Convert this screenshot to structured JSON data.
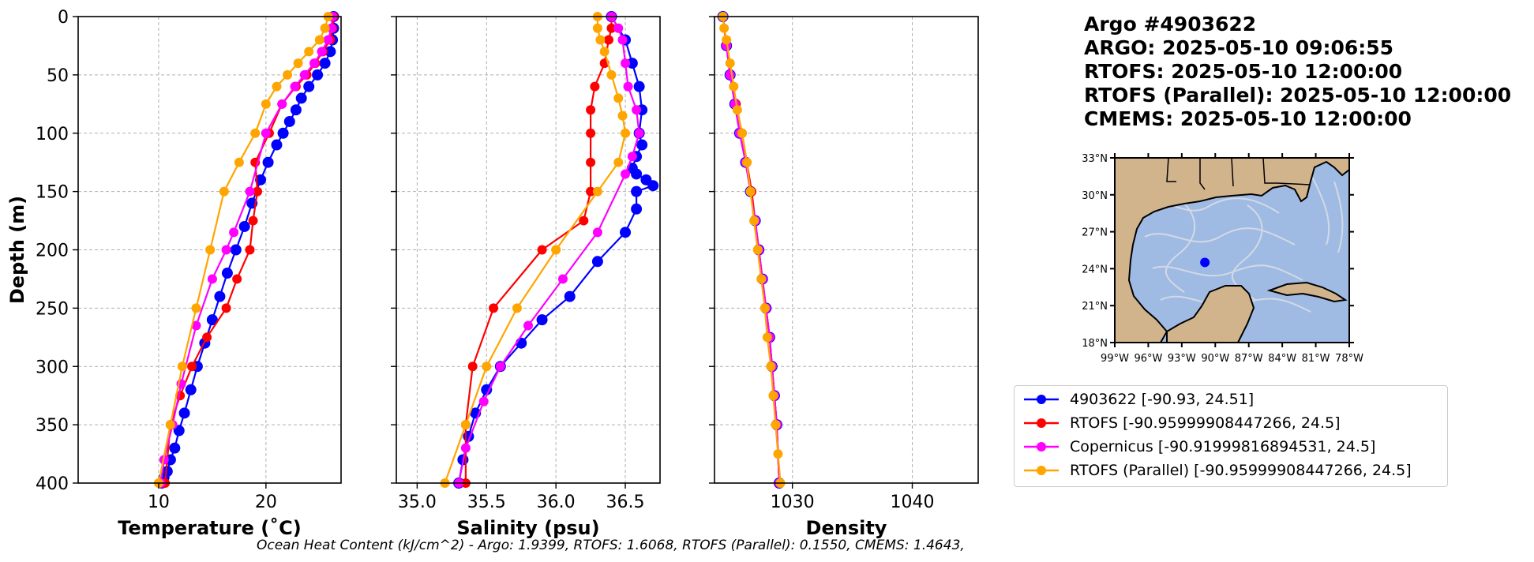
{
  "header": {
    "lines": [
      "Argo #4903622",
      "ARGO:  2025-05-10 09:06:55",
      "RTOFS: 2025-05-10 12:00:00",
      "RTOFS (Parallel): 2025-05-10 12:00:00",
      "CMEMS: 2025-05-10 12:00:00"
    ]
  },
  "footnote": "Ocean Heat Content (kJ/cm^2) - Argo: 1.9399,  RTOFS: 1.6068,  RTOFS (Parallel): 0.1550,  CMEMS: 1.4643,",
  "colors": {
    "argo": "#0000ff",
    "rtofs": "#ff0000",
    "copernicus": "#ff00ff",
    "rtofs_parallel": "#ffa500",
    "grid": "#b0b0b0",
    "land": "#d2b48c",
    "ocean": "#9fbbe4",
    "streamlines": "#d9dde4"
  },
  "legend": {
    "items": [
      {
        "label": "4903622 [-90.93, 24.51]",
        "series": "argo"
      },
      {
        "label": "RTOFS [-90.95999908447266, 24.5]",
        "series": "rtofs"
      },
      {
        "label": "Copernicus [-90.91999816894531, 24.5]",
        "series": "copernicus"
      },
      {
        "label": "RTOFS (Parallel) [-90.95999908447266, 24.5]",
        "series": "rtofs_parallel"
      }
    ]
  },
  "map": {
    "lat_labels": [
      "33°N",
      "30°N",
      "27°N",
      "24°N",
      "21°N",
      "18°N"
    ],
    "lon_labels": [
      "99°W",
      "96°W",
      "93°W",
      "90°W",
      "87°W",
      "84°W",
      "81°W",
      "78°W"
    ],
    "lon_range": [
      -99,
      -78
    ],
    "lat_range": [
      18,
      33
    ],
    "float_position": {
      "lon": -90.93,
      "lat": 24.51
    }
  },
  "chart_data": [
    {
      "type": "line",
      "xlabel": "Temperature (˚C)",
      "ylabel": "Depth (m)",
      "xlim": [
        2.5,
        27
      ],
      "ylim": [
        400,
        0
      ],
      "xticks": [
        10,
        20
      ],
      "yticks": [
        0,
        50,
        100,
        150,
        200,
        250,
        300,
        350,
        400
      ],
      "grid": true,
      "series": [
        {
          "name": "4903622",
          "key": "argo",
          "x": [
            26.3,
            26.3,
            26.2,
            26.0,
            25.5,
            24.8,
            24.0,
            23.3,
            22.8,
            22.2,
            21.6,
            21.0,
            20.2,
            19.5,
            18.7,
            18.0,
            17.2,
            16.4,
            15.7,
            15.0,
            14.3,
            13.6,
            13.0,
            12.4,
            11.9,
            11.5,
            11.1,
            10.8,
            10.5,
            10.3
          ],
          "y": [
            0,
            10,
            20,
            30,
            40,
            50,
            60,
            70,
            80,
            90,
            100,
            110,
            125,
            140,
            160,
            180,
            200,
            220,
            240,
            260,
            280,
            300,
            320,
            340,
            355,
            370,
            380,
            390,
            395,
            400
          ]
        },
        {
          "name": "RTOFS",
          "key": "rtofs",
          "x": [
            26.3,
            26.2,
            26.0,
            25.3,
            24.6,
            23.8,
            22.8,
            21.5,
            20.3,
            19.0,
            19.2,
            18.8,
            18.5,
            17.3,
            16.3,
            14.5,
            13.1,
            12.0,
            11.1,
            10.6
          ],
          "y": [
            0,
            10,
            20,
            30,
            40,
            50,
            60,
            75,
            100,
            125,
            150,
            175,
            200,
            225,
            250,
            275,
            300,
            325,
            350,
            400
          ]
        },
        {
          "name": "Copernicus",
          "key": "copernicus",
          "x": [
            26.2,
            26.1,
            25.8,
            25.2,
            24.5,
            23.6,
            22.7,
            21.5,
            20.0,
            18.5,
            17.0,
            16.3,
            15.0,
            13.5,
            12.1,
            11.3,
            10.5,
            10.2
          ],
          "y": [
            0,
            10,
            20,
            30,
            40,
            50,
            60,
            75,
            100,
            150,
            185,
            200,
            225,
            265,
            315,
            350,
            380,
            400
          ]
        },
        {
          "name": "RTOFS (Parallel)",
          "key": "rtofs_parallel",
          "x": [
            25.8,
            25.5,
            25.0,
            24.0,
            23.0,
            22.0,
            21.0,
            20.0,
            19.0,
            17.5,
            16.1,
            14.8,
            13.5,
            12.2,
            11.1,
            10.0
          ],
          "y": [
            0,
            10,
            20,
            30,
            40,
            50,
            60,
            75,
            100,
            125,
            150,
            200,
            250,
            300,
            350,
            400
          ]
        }
      ]
    },
    {
      "type": "line",
      "xlabel": "Salinity (psu)",
      "ylabel": "",
      "xlim": [
        34.85,
        36.75
      ],
      "ylim": [
        400,
        0
      ],
      "xticks": [
        35.0,
        35.5,
        36.0,
        36.5
      ],
      "yticks": [
        0,
        50,
        100,
        150,
        200,
        250,
        300,
        350,
        400
      ],
      "grid": true,
      "series": [
        {
          "name": "4903622",
          "key": "argo",
          "x": [
            36.4,
            36.5,
            36.55,
            36.6,
            36.62,
            36.6,
            36.62,
            36.58,
            36.55,
            36.58,
            36.65,
            36.7,
            36.58,
            36.58,
            36.5,
            36.3,
            36.1,
            35.9,
            35.75,
            35.6,
            35.5,
            35.42,
            35.37,
            35.33,
            35.3
          ],
          "y": [
            0,
            20,
            40,
            60,
            80,
            100,
            110,
            120,
            130,
            135,
            140,
            145,
            150,
            165,
            185,
            210,
            240,
            260,
            280,
            300,
            320,
            340,
            360,
            380,
            400
          ]
        },
        {
          "name": "RTOFS",
          "key": "rtofs",
          "x": [
            36.4,
            36.4,
            36.38,
            36.35,
            36.28,
            36.25,
            36.25,
            36.25,
            36.25,
            36.2,
            35.9,
            35.55,
            35.4,
            35.35,
            35.35
          ],
          "y": [
            0,
            10,
            20,
            40,
            60,
            80,
            100,
            125,
            150,
            175,
            200,
            250,
            300,
            350,
            400
          ]
        },
        {
          "name": "Copernicus",
          "key": "copernicus",
          "x": [
            36.4,
            36.45,
            36.48,
            36.5,
            36.52,
            36.58,
            36.6,
            36.55,
            36.5,
            36.3,
            36.05,
            35.8,
            35.6,
            35.48,
            35.35,
            35.3
          ],
          "y": [
            0,
            10,
            20,
            40,
            60,
            80,
            100,
            120,
            135,
            185,
            225,
            265,
            300,
            330,
            370,
            400
          ]
        },
        {
          "name": "RTOFS (Parallel)",
          "key": "rtofs_parallel",
          "x": [
            36.3,
            36.3,
            36.32,
            36.35,
            36.4,
            36.45,
            36.48,
            36.5,
            36.45,
            36.3,
            36.0,
            35.72,
            35.5,
            35.35,
            35.2
          ],
          "y": [
            0,
            10,
            20,
            30,
            50,
            70,
            85,
            100,
            125,
            150,
            200,
            250,
            300,
            350,
            400
          ]
        }
      ]
    },
    {
      "type": "line",
      "xlabel": "Density",
      "ylabel": "",
      "xlim": [
        1023.5,
        1045.5
      ],
      "ylim": [
        400,
        0
      ],
      "xticks": [
        1030,
        1040
      ],
      "yticks": [
        0,
        50,
        100,
        150,
        200,
        250,
        300,
        350,
        400
      ],
      "grid": true,
      "series": [
        {
          "name": "4903622",
          "key": "argo",
          "x": [
            1024.2,
            1024.5,
            1024.8,
            1025.2,
            1025.6,
            1026.1,
            1026.5,
            1026.9,
            1027.2,
            1027.5,
            1027.8,
            1028.1,
            1028.3,
            1028.5,
            1028.7,
            1028.9
          ],
          "y": [
            0,
            25,
            50,
            75,
            100,
            125,
            150,
            175,
            200,
            225,
            250,
            275,
            300,
            325,
            350,
            400
          ]
        },
        {
          "name": "RTOFS",
          "key": "rtofs",
          "x": [
            1024.2,
            1024.5,
            1024.8,
            1025.3,
            1025.8,
            1026.2,
            1026.6,
            1026.9,
            1027.2,
            1027.5,
            1027.8,
            1028.1,
            1028.3,
            1028.5,
            1028.7,
            1028.9
          ],
          "y": [
            0,
            25,
            50,
            75,
            100,
            125,
            150,
            175,
            200,
            225,
            250,
            275,
            300,
            325,
            350,
            400
          ]
        },
        {
          "name": "Copernicus",
          "key": "copernicus",
          "x": [
            1024.2,
            1024.5,
            1024.8,
            1025.2,
            1025.6,
            1026.1,
            1026.5,
            1026.9,
            1027.2,
            1027.5,
            1027.8,
            1028.1,
            1028.3,
            1028.5,
            1028.7,
            1028.9
          ],
          "y": [
            0,
            25,
            50,
            75,
            100,
            125,
            150,
            175,
            200,
            225,
            250,
            275,
            300,
            325,
            350,
            400
          ]
        },
        {
          "name": "RTOFS (Parallel)",
          "key": "rtofs_parallel",
          "x": [
            1024.2,
            1024.3,
            1024.5,
            1024.8,
            1025.1,
            1025.4,
            1025.8,
            1026.2,
            1026.5,
            1026.8,
            1027.1,
            1027.4,
            1027.7,
            1027.9,
            1028.2,
            1028.4,
            1028.6,
            1028.8,
            1029.0
          ],
          "y": [
            0,
            10,
            20,
            40,
            60,
            80,
            100,
            125,
            150,
            175,
            200,
            225,
            250,
            275,
            300,
            325,
            350,
            375,
            400
          ]
        }
      ]
    }
  ]
}
